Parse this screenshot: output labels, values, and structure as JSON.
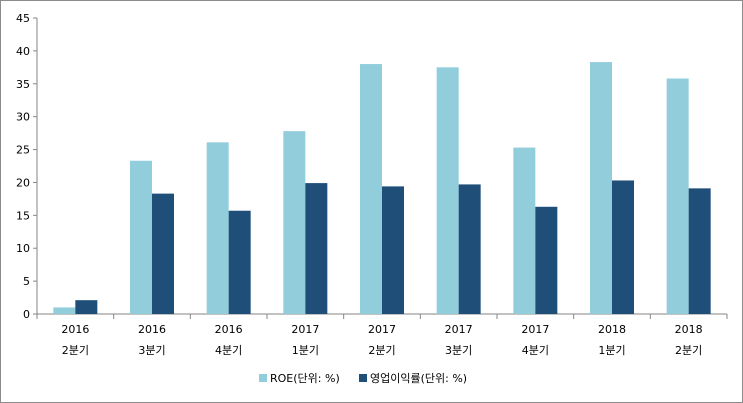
{
  "chart_data": {
    "type": "bar",
    "categories": [
      [
        "2016",
        "2분기"
      ],
      [
        "2016",
        "3분기"
      ],
      [
        "2016",
        "4분기"
      ],
      [
        "2017",
        "1분기"
      ],
      [
        "2017",
        "2분기"
      ],
      [
        "2017",
        "3분기"
      ],
      [
        "2017",
        "4분기"
      ],
      [
        "2018",
        "1분기"
      ],
      [
        "2018",
        "2분기"
      ]
    ],
    "series": [
      {
        "name": "ROE(단위: %)",
        "color": "#92cddc",
        "values": [
          1.0,
          23.3,
          26.1,
          27.8,
          38.0,
          37.5,
          25.3,
          38.3,
          35.8
        ]
      },
      {
        "name": "영업이익률(단위: %)",
        "color": "#1f4e79",
        "values": [
          2.1,
          18.3,
          15.7,
          19.9,
          19.4,
          19.7,
          16.3,
          20.3,
          19.1
        ]
      }
    ],
    "ylim": [
      0,
      45
    ],
    "yticks": [
      0,
      5,
      10,
      15,
      20,
      25,
      30,
      35,
      40,
      45
    ],
    "grid": false,
    "legend": "bottom"
  }
}
